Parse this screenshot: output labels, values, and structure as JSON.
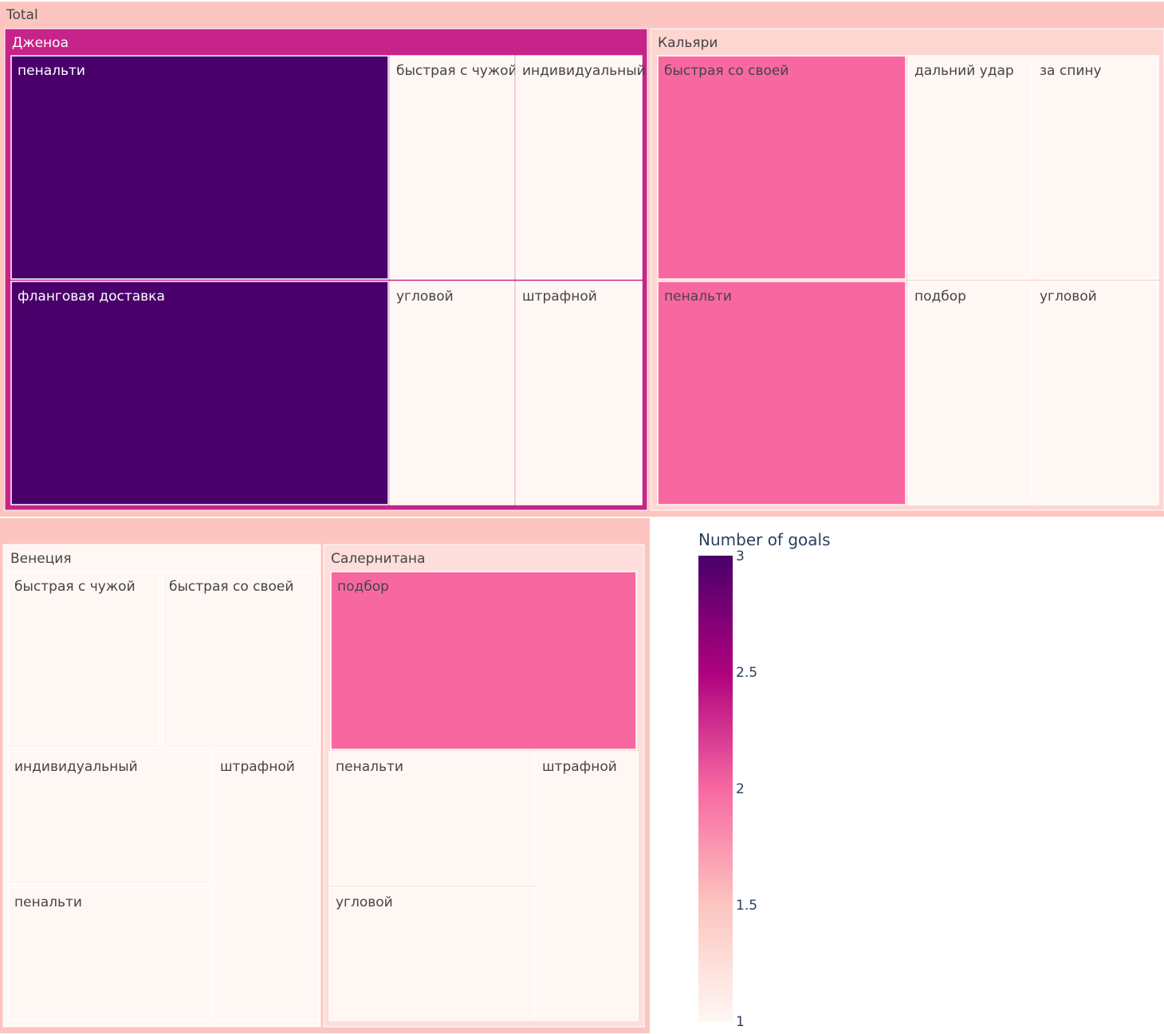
{
  "chart_data": {
    "type": "treemap",
    "root": "Total",
    "colorbar": {
      "title": "Number of goals",
      "range": [
        1,
        3
      ],
      "ticks": [
        "3",
        "2.5",
        "2",
        "1.5",
        "1"
      ],
      "colorscale": [
        "#fff7f3",
        "#fcc5c0",
        "#f768a1",
        "#ae017e",
        "#49006a"
      ]
    },
    "groups": [
      {
        "name": "Дженоа",
        "value": 2.33,
        "children": [
          {
            "name": "пенальти",
            "value": 3
          },
          {
            "name": "фланговая доставка",
            "value": 3
          },
          {
            "name": "быстрая с чужой",
            "value": 1
          },
          {
            "name": "индивидуальный",
            "value": 1
          },
          {
            "name": "угловой",
            "value": 1
          },
          {
            "name": "штрафной",
            "value": 1
          }
        ]
      },
      {
        "name": "Кальяри",
        "value": 1.33,
        "children": [
          {
            "name": "быстрая со своей",
            "value": 2
          },
          {
            "name": "пенальти",
            "value": 2
          },
          {
            "name": "дальний удар",
            "value": 1
          },
          {
            "name": "за спину",
            "value": 1
          },
          {
            "name": "подбор",
            "value": 1
          },
          {
            "name": "угловой",
            "value": 1
          }
        ]
      },
      {
        "name": "Венеция",
        "value": 1,
        "children": [
          {
            "name": "быстрая с чужой",
            "value": 1
          },
          {
            "name": "быстрая со своей",
            "value": 1
          },
          {
            "name": "индивидуальный",
            "value": 1
          },
          {
            "name": "штрафной",
            "value": 1
          },
          {
            "name": "пенальти",
            "value": 1
          }
        ]
      },
      {
        "name": "Салернитана",
        "value": 1.25,
        "children": [
          {
            "name": "подбор",
            "value": 2
          },
          {
            "name": "пенальти",
            "value": 1
          },
          {
            "name": "штрафной",
            "value": 1
          },
          {
            "name": "угловой",
            "value": 1
          }
        ]
      }
    ]
  }
}
